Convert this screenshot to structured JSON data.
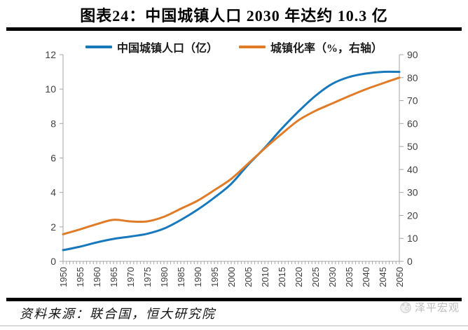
{
  "title": "图表24：中国城镇人口 2030 年达约 10.3 亿",
  "legend": {
    "items": [
      {
        "label": "中国城镇人口（亿）",
        "color": "#1878bc"
      },
      {
        "label": "城镇化率（%，右轴）",
        "color": "#e07b28"
      }
    ]
  },
  "chart_data": {
    "type": "line",
    "x": [
      1950,
      1955,
      1960,
      1965,
      1970,
      1975,
      1980,
      1985,
      1990,
      1995,
      2000,
      2005,
      2010,
      2015,
      2020,
      2025,
      2030,
      2035,
      2040,
      2045,
      2050
    ],
    "series": [
      {
        "name": "中国城镇人口（亿）",
        "axis": "left",
        "color": "#1878bc",
        "values": [
          0.65,
          0.85,
          1.1,
          1.3,
          1.44,
          1.6,
          1.9,
          2.4,
          3.0,
          3.7,
          4.5,
          5.6,
          6.6,
          7.7,
          8.7,
          9.6,
          10.3,
          10.7,
          10.9,
          11.0,
          11.0
        ]
      },
      {
        "name": "城镇化率（%，右轴）",
        "axis": "right",
        "color": "#e07b28",
        "values": [
          11.8,
          13.9,
          16.2,
          18.1,
          17.4,
          17.4,
          19.4,
          22.9,
          26.4,
          31.0,
          35.9,
          42.5,
          49.2,
          55.5,
          61.4,
          65.5,
          68.7,
          71.9,
          74.9,
          77.5,
          80.0
        ]
      }
    ],
    "left_axis": {
      "min": 0,
      "max": 12,
      "step": 2
    },
    "right_axis": {
      "min": 0,
      "max": 90,
      "step": 10
    },
    "x_range": [
      1950,
      2050
    ],
    "x_tick_step": 5,
    "x_minor_step": 1,
    "grid": false,
    "legend_position": "top",
    "annotation": "2030 年达约 10.3 亿"
  },
  "footer": {
    "source": "资料来源：联合国，恒大研究院",
    "watermark": "泽平宏观"
  },
  "style": {
    "axis_color": "#a6a6a6",
    "tick_label_color": "#404040",
    "rule_color": "#000000"
  }
}
